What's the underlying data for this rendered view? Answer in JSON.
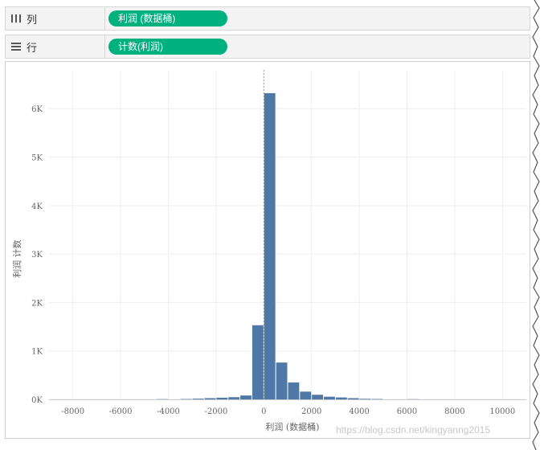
{
  "shelves": {
    "columns": {
      "label": "列",
      "pill": "利润 (数据桶)"
    },
    "rows": {
      "label": "行",
      "pill": "计数(利润)"
    }
  },
  "watermark": "https://blog.csdn.net/kingyanng2015",
  "colors": {
    "bar": "#4e79a7",
    "pill": "#00b180",
    "grid": "#eeeeee",
    "zero_line": "#999999"
  },
  "chart_data": {
    "type": "bar",
    "title": "",
    "xlabel": "利润 (数据桶)",
    "ylabel": "利润 计数",
    "bin_width": 500,
    "xlim": [
      -9000,
      11000
    ],
    "ylim": [
      0,
      6800
    ],
    "x_ticks": [
      -8000,
      -6000,
      -4000,
      -2000,
      0,
      2000,
      4000,
      6000,
      8000,
      10000
    ],
    "x_tick_labels": [
      "-8000",
      "-6000",
      "-4000",
      "-2000",
      "0",
      "2000",
      "4000",
      "6000",
      "8000",
      "10000"
    ],
    "y_ticks": [
      0,
      1000,
      2000,
      3000,
      4000,
      5000,
      6000
    ],
    "y_tick_labels": [
      "0K",
      "1K",
      "2K",
      "3K",
      "4K",
      "5K",
      "6K"
    ],
    "grid": true,
    "bins": [
      {
        "x": -4500,
        "count": 5
      },
      {
        "x": -3500,
        "count": 8
      },
      {
        "x": -3000,
        "count": 15
      },
      {
        "x": -2500,
        "count": 25
      },
      {
        "x": -2000,
        "count": 35
      },
      {
        "x": -1500,
        "count": 45
      },
      {
        "x": -1000,
        "count": 80
      },
      {
        "x": -500,
        "count": 210
      },
      {
        "x": -1,
        "count": 1530
      },
      {
        "x": 0,
        "count": 6320
      },
      {
        "x": 500,
        "count": 760
      },
      {
        "x": 1000,
        "count": 350
      },
      {
        "x": 1500,
        "count": 160
      },
      {
        "x": 2000,
        "count": 95
      },
      {
        "x": 2500,
        "count": 55
      },
      {
        "x": 3000,
        "count": 40
      },
      {
        "x": 3500,
        "count": 25
      },
      {
        "x": 4000,
        "count": 12
      },
      {
        "x": 4500,
        "count": 8
      },
      {
        "x": 6000,
        "count": 4
      }
    ]
  }
}
